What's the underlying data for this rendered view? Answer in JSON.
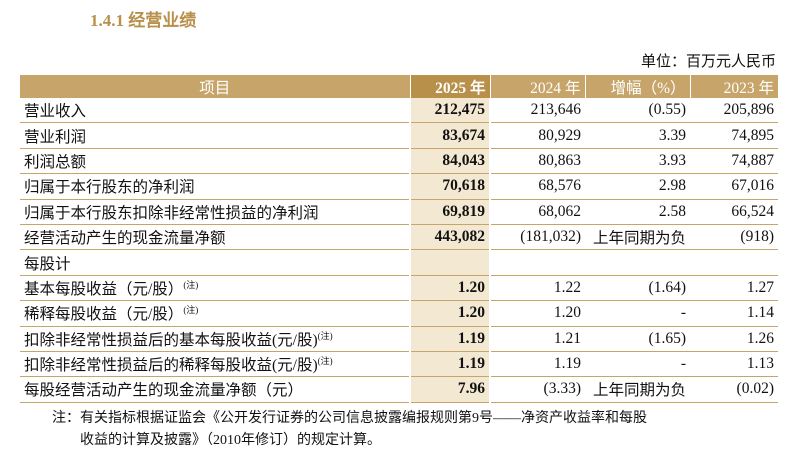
{
  "header": {
    "title": "1.4.1 经营业绩",
    "unit": "单位：百万元人民币"
  },
  "table": {
    "columns": [
      "项目",
      "2025 年",
      "2024 年",
      "增幅（%）",
      "2023 年"
    ],
    "rows": [
      {
        "label": "营业收入",
        "cells": [
          "212,475",
          "213,646",
          "(0.55)",
          "205,896"
        ]
      },
      {
        "label": "营业利润",
        "cells": [
          "83,674",
          "80,929",
          "3.39",
          "74,895"
        ]
      },
      {
        "label": "利润总额",
        "cells": [
          "84,043",
          "80,863",
          "3.93",
          "74,887"
        ]
      },
      {
        "label": "归属于本行股东的净利润",
        "cells": [
          "70,618",
          "68,576",
          "2.98",
          "67,016"
        ]
      },
      {
        "label": "归属于本行股东扣除非经常性损益的净利润",
        "cells": [
          "69,819",
          "68,062",
          "2.58",
          "66,524"
        ]
      },
      {
        "label": "经营活动产生的现金流量净额",
        "cells": [
          "443,082",
          "(181,032)",
          "上年同期为负",
          "(918)"
        ]
      },
      {
        "label": "每股计"
      },
      {
        "label": "基本每股收益（元/股）",
        "note": "(注)",
        "cells": [
          "1.20",
          "1.22",
          "(1.64)",
          "1.27"
        ]
      },
      {
        "label": "稀释每股收益（元/股）",
        "note": "(注)",
        "cells": [
          "1.20",
          "1.20",
          "-",
          "1.14"
        ]
      },
      {
        "label": "扣除非经常性损益后的基本每股收益(元/股)",
        "note": "(注)",
        "cells": [
          "1.19",
          "1.21",
          "(1.65)",
          "1.26"
        ]
      },
      {
        "label": "扣除非经常性损益后的稀释每股收益(元/股)",
        "note": "(注)",
        "cells": [
          "1.19",
          "1.19",
          "-",
          "1.13"
        ]
      },
      {
        "label": "每股经营活动产生的现金流量净额（元）",
        "cells": [
          "7.96",
          "(3.33)",
          "上年同期为负",
          "(0.02)"
        ]
      }
    ]
  },
  "notes": [
    "注：有关指标根据证监会《公开发行证券的公司信息披露编报规则第9号——净资产收益率和每股",
    "收益的计算及披露》（2010年修订）的规定计算。"
  ]
}
